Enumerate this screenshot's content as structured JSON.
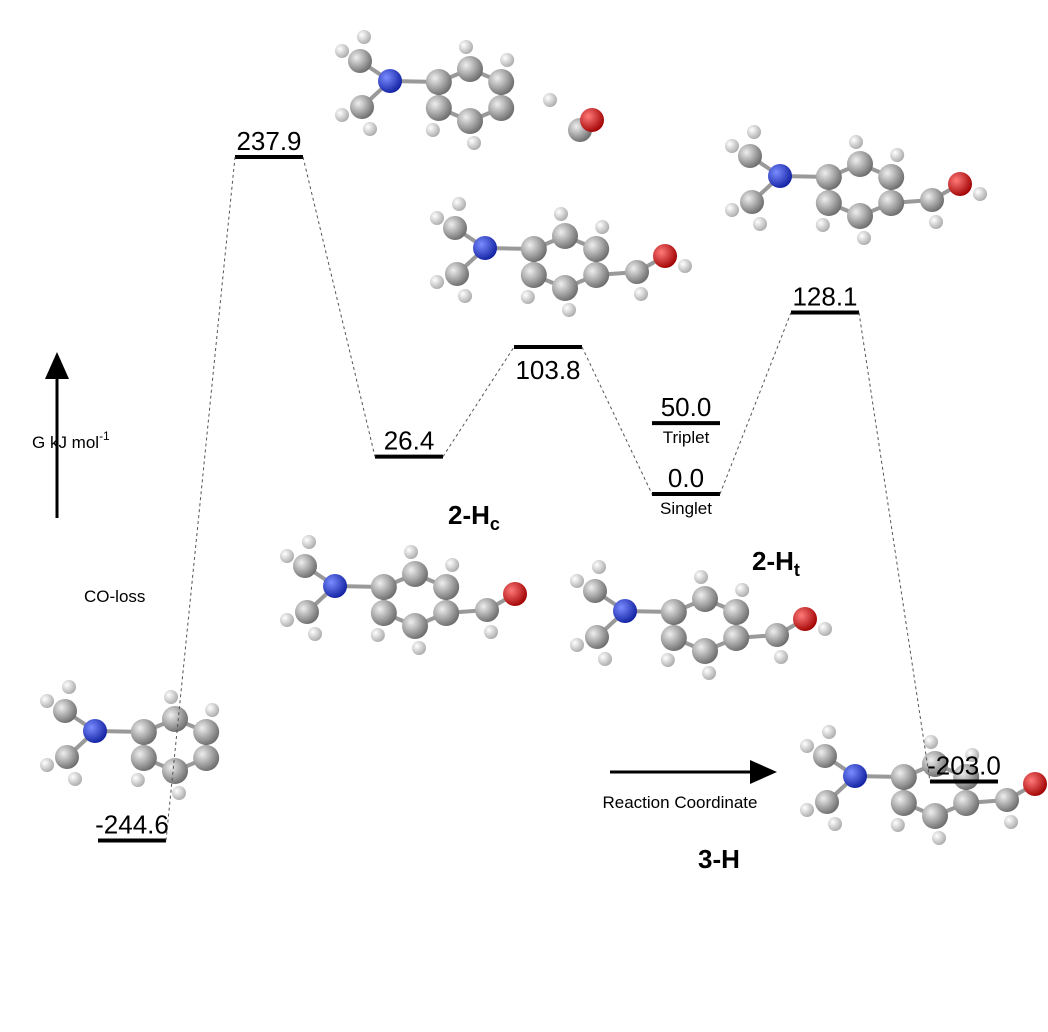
{
  "diagram": {
    "axis_label": {
      "text": "G kJ mol",
      "superscript": "-1"
    },
    "x_axis_label": "Reaction Coordinate",
    "path_label": "CO-loss",
    "levels": [
      {
        "value": -244.6,
        "label": "-244.6"
      },
      {
        "value": 237.9,
        "label": "237.9"
      },
      {
        "value": 26.4,
        "label": "26.4"
      },
      {
        "value": 103.8,
        "label": "103.8"
      },
      {
        "value": 50,
        "label": "50.0",
        "state": "Triplet"
      },
      {
        "value": 0,
        "label": "0.0",
        "state": "Singlet"
      },
      {
        "value": 128.1,
        "label": "128.1"
      },
      {
        "value": -203,
        "label": "-203.0"
      }
    ],
    "species": [
      {
        "name": "2-H",
        "sub": "c"
      },
      {
        "name": "2-H",
        "sub": "t"
      },
      {
        "name": "3-H"
      }
    ]
  }
}
